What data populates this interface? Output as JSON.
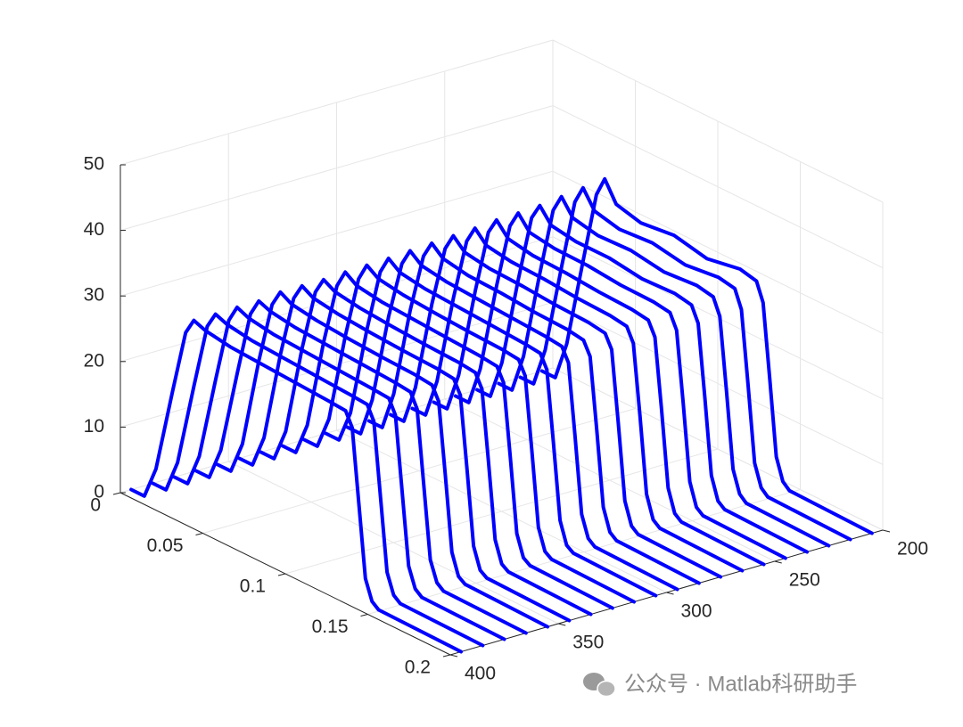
{
  "chart_data": {
    "type": "waterfall3d",
    "color": "#0000ff",
    "grid": true,
    "xlim": [
      0,
      0.2
    ],
    "xticks": [
      0,
      0.05,
      0.1,
      0.15,
      0.2
    ],
    "ylim": [
      200,
      400
    ],
    "yticks": [
      200,
      250,
      300,
      350,
      400
    ],
    "zlim": [
      0,
      50
    ],
    "zticks": [
      0,
      10,
      20,
      30,
      40,
      50
    ],
    "x": [
      0,
      0.008,
      0.015,
      0.025,
      0.033,
      0.038,
      0.045,
      0.06,
      0.08,
      0.1,
      0.12,
      0.13,
      0.134,
      0.138,
      0.142,
      0.146,
      0.15,
      0.2
    ],
    "series": [
      {
        "y": 395,
        "values": [
          0,
          0,
          5,
          18,
          28,
          30.5,
          29.8,
          29.2,
          28.9,
          28.6,
          28.3,
          28.1,
          26,
          15,
          4,
          1,
          0.2,
          0
        ]
      },
      {
        "y": 385,
        "values": [
          0,
          0,
          5,
          18,
          28,
          30.5,
          29.8,
          29.2,
          28.9,
          28.6,
          28.3,
          28.1,
          26,
          15,
          4,
          1,
          0.2,
          0
        ]
      },
      {
        "y": 375,
        "values": [
          0,
          0,
          5,
          18,
          28,
          30.6,
          29.8,
          29.2,
          28.9,
          28.6,
          28.3,
          28.1,
          26,
          15,
          4,
          1,
          0.2,
          0
        ]
      },
      {
        "y": 365,
        "values": [
          0,
          0,
          5,
          18,
          28,
          30.6,
          29.9,
          29.3,
          29,
          28.7,
          28.4,
          28.1,
          26,
          15,
          4,
          1,
          0.2,
          0
        ]
      },
      {
        "y": 355,
        "values": [
          0,
          0,
          5,
          19,
          28.5,
          31,
          30,
          29.4,
          29,
          28.7,
          28.5,
          28.2,
          26.2,
          15.5,
          4.2,
          1,
          0.3,
          0
        ]
      },
      {
        "y": 345,
        "values": [
          0,
          0,
          5,
          19,
          28.5,
          31,
          30,
          29.4,
          29,
          28.7,
          28.5,
          28.2,
          26.2,
          15.5,
          4.2,
          1,
          0.3,
          0
        ]
      },
      {
        "y": 335,
        "values": [
          0,
          0,
          5,
          19,
          28.5,
          31,
          30,
          29.4,
          29,
          28.7,
          28.5,
          28.2,
          26.2,
          15.5,
          4.2,
          1,
          0.3,
          0
        ]
      },
      {
        "y": 325,
        "values": [
          0,
          0,
          5,
          19,
          28.5,
          31.2,
          30,
          29.4,
          29.1,
          28.8,
          28.5,
          28.2,
          26.2,
          15.5,
          4.2,
          1,
          0.3,
          0
        ]
      },
      {
        "y": 315,
        "values": [
          0,
          0,
          5,
          19,
          28.6,
          31.3,
          30.1,
          29.5,
          29.1,
          28.8,
          28.6,
          28.3,
          26.3,
          15.5,
          4.2,
          1,
          0.3,
          0
        ]
      },
      {
        "y": 305,
        "values": [
          0,
          0,
          5,
          19,
          28.7,
          31.4,
          30.1,
          29.5,
          29.2,
          28.9,
          28.6,
          28.3,
          26.3,
          15.6,
          4.3,
          1,
          0.3,
          0
        ]
      },
      {
        "y": 295,
        "values": [
          0,
          0,
          6,
          20,
          29,
          31.6,
          30.2,
          29.6,
          29.3,
          29,
          28.7,
          28.4,
          26.4,
          15.7,
          4.3,
          1.1,
          0.3,
          0
        ]
      },
      {
        "y": 285,
        "values": [
          0,
          0,
          6,
          20,
          29.2,
          31.8,
          30.3,
          29.6,
          29.4,
          29,
          28.8,
          28.4,
          26.4,
          15.8,
          4.4,
          1.1,
          0.3,
          0
        ]
      },
      {
        "y": 275,
        "values": [
          0,
          0,
          6,
          20,
          29.4,
          32,
          30.3,
          29.7,
          29.5,
          29.1,
          28.9,
          28.5,
          26.5,
          15.8,
          4.4,
          1.1,
          0.3,
          0
        ]
      },
      {
        "y": 265,
        "values": [
          0,
          0,
          6,
          20,
          29.6,
          32.2,
          30.4,
          29.8,
          29.6,
          29.2,
          29,
          28.6,
          26.5,
          16,
          4.5,
          1.1,
          0.3,
          0
        ]
      },
      {
        "y": 255,
        "values": [
          0,
          0,
          6,
          20,
          30,
          32.5,
          30.5,
          29.8,
          29.6,
          29.2,
          29,
          28.6,
          26.5,
          16,
          4.5,
          1.1,
          0.3,
          0
        ]
      },
      {
        "y": 245,
        "values": [
          0,
          0,
          6,
          20,
          30,
          32.6,
          30.5,
          29.9,
          29.8,
          29.3,
          29.2,
          28.8,
          26.6,
          16,
          4.5,
          1.1,
          0.3,
          0
        ]
      },
      {
        "y": 235,
        "values": [
          0,
          0,
          6,
          20,
          30.3,
          32.8,
          30.6,
          30,
          30,
          29.3,
          29.5,
          29,
          26.7,
          16,
          4.5,
          1.1,
          0.3,
          0
        ]
      },
      {
        "y": 225,
        "values": [
          0,
          0,
          6,
          20,
          30.5,
          33.2,
          30.8,
          30,
          30.2,
          29.4,
          29.8,
          29.3,
          26.8,
          16,
          4.5,
          1.2,
          0.3,
          0
        ]
      },
      {
        "y": 215,
        "values": [
          0,
          0,
          6,
          20,
          30.8,
          33.6,
          30.9,
          30,
          30.4,
          29.5,
          30.1,
          29.6,
          26.9,
          16,
          4.5,
          1.2,
          0.3,
          0
        ]
      },
      {
        "y": 205,
        "values": [
          0,
          0,
          6,
          20,
          31,
          34,
          31,
          30,
          30.6,
          29.5,
          30.4,
          29.8,
          27,
          16,
          4.5,
          1.2,
          0.3,
          0
        ]
      }
    ]
  },
  "watermark": "公众号 · Matlab科研助手"
}
